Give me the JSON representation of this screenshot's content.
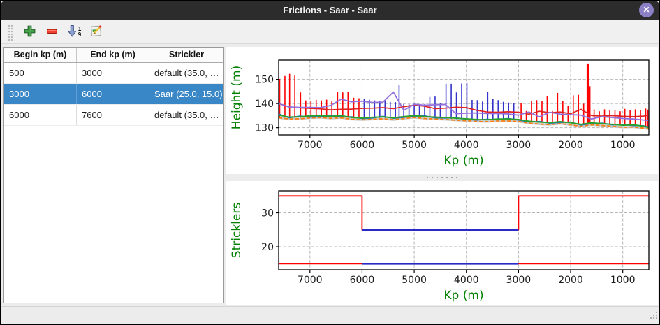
{
  "window": {
    "title": "Frictions - Saar - Saar"
  },
  "icons": {
    "close": "x-circle",
    "add": "green-plus",
    "remove": "red-minus",
    "sort": "blue-down-arrow-1-9",
    "edit": "page-with-pencil",
    "splitter": "grip-dots",
    "resize": "corner-grip-dots"
  },
  "toolbar": {
    "sort_top": "1",
    "sort_bottom": "9"
  },
  "table": {
    "columns": [
      "Begin kp (m)",
      "End kp (m)",
      "Strickler"
    ],
    "rows": [
      {
        "begin": "500",
        "end": "3000",
        "strickler": "default (35.0, …",
        "selected": false
      },
      {
        "begin": "3000",
        "end": "6000",
        "strickler": "Saar (25.0, 15.0)",
        "selected": true
      },
      {
        "begin": "6000",
        "end": "7600",
        "strickler": "default (35.0, …",
        "selected": false
      }
    ],
    "selection_color": "#3a87c8"
  },
  "colors": {
    "titlebar_bg": "#2c2c2c",
    "close_button": "#8b7fc6",
    "panel_bg": "#ececec",
    "axis_label_green": "#008000",
    "section_other_red": "#ff0000",
    "section_selected_blue": "#3333cc"
  },
  "chart_data": [
    {
      "type": "line",
      "name": "height-profile",
      "title": "",
      "xlabel": "Kp (m)",
      "ylabel": "Height (m)",
      "x_inverted": true,
      "xlim": [
        7600,
        500
      ],
      "ylim": [
        127,
        158
      ],
      "xticks": [
        7000,
        6000,
        5000,
        4000,
        3000,
        2000,
        1000
      ],
      "yticks": [
        130,
        140,
        150
      ],
      "grid": true,
      "axis_label_color": "#008000",
      "x": [
        7600,
        7400,
        7200,
        7000,
        6800,
        6600,
        6400,
        6200,
        6000,
        5800,
        5600,
        5400,
        5200,
        5000,
        4800,
        4600,
        4400,
        4200,
        4000,
        3800,
        3600,
        3400,
        3200,
        3000,
        2800,
        2600,
        2400,
        2200,
        2000,
        1800,
        1600,
        1400,
        1200,
        1000,
        800,
        600,
        500
      ],
      "series": [
        {
          "name": "bed-underlay",
          "color": "#c9c9c9",
          "width": 3,
          "values": [
            134.1,
            133.6,
            133.7,
            134.0,
            134.2,
            133.9,
            134.1,
            133.5,
            133.3,
            133.5,
            133.7,
            133.3,
            133.8,
            134.2,
            133.8,
            133.6,
            133.4,
            133.1,
            132.9,
            132.6,
            132.5,
            132.8,
            132.8,
            132.6,
            131.9,
            131.5,
            131.3,
            131.7,
            131.2,
            130.6,
            131.2,
            130.9,
            130.6,
            130.2,
            130.3,
            129.8,
            129.5
          ]
        },
        {
          "name": "thalweg-orange-dashed",
          "color": "#ff7f0e",
          "width": 1.8,
          "dash": "5 3",
          "values": [
            134.1,
            133.6,
            133.7,
            134.0,
            134.2,
            133.9,
            134.1,
            133.5,
            133.3,
            133.5,
            133.7,
            133.3,
            133.8,
            134.2,
            133.8,
            133.6,
            133.4,
            133.1,
            132.9,
            132.6,
            132.5,
            132.8,
            132.8,
            132.6,
            131.9,
            131.5,
            131.3,
            131.7,
            131.2,
            130.6,
            131.2,
            130.9,
            130.6,
            130.2,
            130.3,
            129.8,
            129.5
          ]
        },
        {
          "name": "level-blue",
          "color": "#1f77b4",
          "width": 1.7,
          "values": [
            135.7,
            134.1,
            134.8,
            134.4,
            134.6,
            135.0,
            134.5,
            134.5,
            133.8,
            134.0,
            134.7,
            133.9,
            134.3,
            134.8,
            134.9,
            134.1,
            134.0,
            134.1,
            133.5,
            133.2,
            133.5,
            133.3,
            133.8,
            133.2,
            132.4,
            132.6,
            131.9,
            132.2,
            132.3,
            131.1,
            131.7,
            131.9,
            131.2,
            131.3,
            130.9,
            130.8,
            130.2
          ]
        },
        {
          "name": "level-green",
          "color": "#2ca02c",
          "width": 1.9,
          "values": [
            135.2,
            134.4,
            134.5,
            134.9,
            135.0,
            134.7,
            135.0,
            134.2,
            134.0,
            134.3,
            134.5,
            134.1,
            134.6,
            135.0,
            134.6,
            134.4,
            134.2,
            133.9,
            133.7,
            133.4,
            133.3,
            133.6,
            133.6,
            133.4,
            132.7,
            132.3,
            132.1,
            132.5,
            132.0,
            131.4,
            132.0,
            131.7,
            131.4,
            131.0,
            131.2,
            130.6,
            130.0
          ]
        },
        {
          "name": "bank-red",
          "color": "#e02222",
          "width": 1.7,
          "values": [
            140.0,
            138.6,
            138.2,
            138.0,
            137.8,
            137.4,
            137.6,
            137.7,
            138.0,
            138.1,
            138.3,
            137.9,
            138.7,
            139.3,
            138.9,
            137.9,
            138.1,
            138.5,
            138.3,
            137.2,
            136.5,
            136.4,
            136.6,
            136.4,
            135.6,
            136.8,
            136.2,
            136.5,
            135.8,
            137.6,
            135.0,
            134.8,
            135.0,
            134.7,
            134.6,
            134.8,
            135.2
          ]
        },
        {
          "name": "bank-purple",
          "color": "#9370db",
          "width": 1.8,
          "values": [
            140.0,
            138.6,
            138.4,
            138.4,
            138.3,
            139.2,
            141.8,
            140.7,
            141.0,
            140.4,
            140.6,
            144.8,
            137.2,
            139.7,
            139.3,
            139.5,
            139.6,
            135.8,
            136.0,
            136.1,
            135.9,
            135.9,
            135.7,
            135.2,
            136.5,
            134.5,
            136.4,
            135.6,
            135.4,
            135.2,
            133.6,
            134.6,
            134.2,
            133.8,
            133.6,
            133.2,
            133.0
          ]
        }
      ],
      "sections": {
        "colors": {
          "other": "#ff0000",
          "selected": "#3333cc"
        },
        "other": [
          [
            7580,
            134.2,
            150.2
          ],
          [
            7480,
            133.8,
            151.4
          ],
          [
            7390,
            134.0,
            152.3
          ],
          [
            7290,
            134.1,
            151.6
          ],
          [
            7180,
            134.0,
            144.6
          ],
          [
            7080,
            133.9,
            141.3
          ],
          [
            6980,
            134.0,
            141.2
          ],
          [
            6880,
            134.0,
            141.5
          ],
          [
            6780,
            134.1,
            141.3
          ],
          [
            6680,
            134.0,
            141.6
          ],
          [
            6580,
            134.0,
            141.1
          ],
          [
            6470,
            133.8,
            144.8
          ],
          [
            6370,
            133.9,
            144.6
          ],
          [
            6270,
            134.0,
            144.9
          ],
          [
            6160,
            133.8,
            142.4
          ],
          [
            6060,
            133.8,
            142.2
          ],
          [
            2950,
            132.8,
            140.3
          ],
          [
            2850,
            132.7,
            136.9
          ],
          [
            2750,
            132.6,
            141.1
          ],
          [
            2650,
            132.5,
            141.4
          ],
          [
            2550,
            132.4,
            141.1
          ],
          [
            2450,
            132.3,
            143.1
          ],
          [
            2350,
            132.2,
            136.9
          ],
          [
            2250,
            132.2,
            144.4
          ],
          [
            2150,
            132.1,
            141.1
          ],
          [
            2050,
            132.0,
            139.1
          ],
          [
            1950,
            131.9,
            143.4
          ],
          [
            1850,
            131.8,
            143.6
          ],
          [
            1750,
            131.7,
            139.9
          ],
          [
            1670,
            131.6,
            156.6,
            3.5
          ],
          [
            1630,
            131.6,
            147.2
          ],
          [
            1550,
            131.5,
            137.6
          ],
          [
            1450,
            131.4,
            136.8
          ],
          [
            1350,
            131.4,
            137.6
          ],
          [
            1250,
            131.3,
            137.4
          ],
          [
            1150,
            131.2,
            137.1
          ],
          [
            1050,
            131.1,
            136.8
          ],
          [
            960,
            131.0,
            137.8
          ],
          [
            860,
            130.9,
            137.4
          ],
          [
            760,
            130.8,
            137.6
          ],
          [
            660,
            130.7,
            137.2
          ],
          [
            560,
            130.6,
            137.9
          ],
          [
            520,
            130.5,
            137.5
          ]
        ],
        "selected": [
          [
            5960,
            133.6,
            142.0
          ],
          [
            5860,
            133.7,
            141.6
          ],
          [
            5760,
            133.7,
            141.3
          ],
          [
            5660,
            133.8,
            141.1
          ],
          [
            5560,
            133.8,
            141.2
          ],
          [
            5460,
            133.7,
            140.7
          ],
          [
            5360,
            133.6,
            140.6
          ],
          [
            5290,
            133.5,
            147.6
          ],
          [
            5200,
            133.6,
            139.8
          ],
          [
            5100,
            133.7,
            139.7
          ],
          [
            5000,
            133.8,
            139.6
          ],
          [
            4900,
            133.7,
            139.5
          ],
          [
            4800,
            133.6,
            139.7
          ],
          [
            4700,
            133.5,
            142.7
          ],
          [
            4600,
            133.5,
            142.9
          ],
          [
            4500,
            133.4,
            140.2
          ],
          [
            4390,
            133.4,
            148.2
          ],
          [
            4290,
            133.3,
            148.2
          ],
          [
            4190,
            133.3,
            144.6
          ],
          [
            4090,
            133.2,
            148.3
          ],
          [
            3990,
            133.2,
            148.4
          ],
          [
            3890,
            133.2,
            141.5
          ],
          [
            3790,
            133.1,
            141.4
          ],
          [
            3690,
            133.1,
            140.8
          ],
          [
            3590,
            133.1,
            144.9
          ],
          [
            3490,
            133.0,
            141.8
          ],
          [
            3390,
            133.0,
            141.4
          ],
          [
            3290,
            133.0,
            140.7
          ],
          [
            3190,
            132.9,
            140.4
          ],
          [
            3090,
            132.9,
            140.1
          ]
        ]
      }
    },
    {
      "type": "step",
      "name": "stricklers",
      "title": "",
      "xlabel": "Kp (m)",
      "ylabel": "Stricklers",
      "x_inverted": true,
      "xlim": [
        7600,
        500
      ],
      "ylim": [
        13.2,
        36.5
      ],
      "xticks": [
        7000,
        6000,
        5000,
        4000,
        3000,
        2000,
        1000
      ],
      "yticks": [
        20,
        30
      ],
      "grid": true,
      "axis_label_color": "#008000",
      "series": [
        {
          "name": "all-main-channel",
          "color": "#ff0000",
          "width": 1.8,
          "points": [
            [
              7600,
              35
            ],
            [
              6000,
              35
            ],
            [
              6000,
              25
            ],
            [
              3000,
              25
            ],
            [
              3000,
              35
            ],
            [
              500,
              35
            ]
          ]
        },
        {
          "name": "all-floodplain",
          "color": "#ff0000",
          "width": 1.8,
          "points": [
            [
              7600,
              15
            ],
            [
              500,
              15
            ]
          ]
        },
        {
          "name": "selected-main-channel",
          "color": "#2a2ac8",
          "width": 2.6,
          "points": [
            [
              6000,
              25
            ],
            [
              3000,
              25
            ]
          ]
        },
        {
          "name": "selected-floodplain",
          "color": "#2a2ac8",
          "width": 2.6,
          "points": [
            [
              6000,
              15
            ],
            [
              3000,
              15
            ]
          ]
        }
      ]
    }
  ]
}
